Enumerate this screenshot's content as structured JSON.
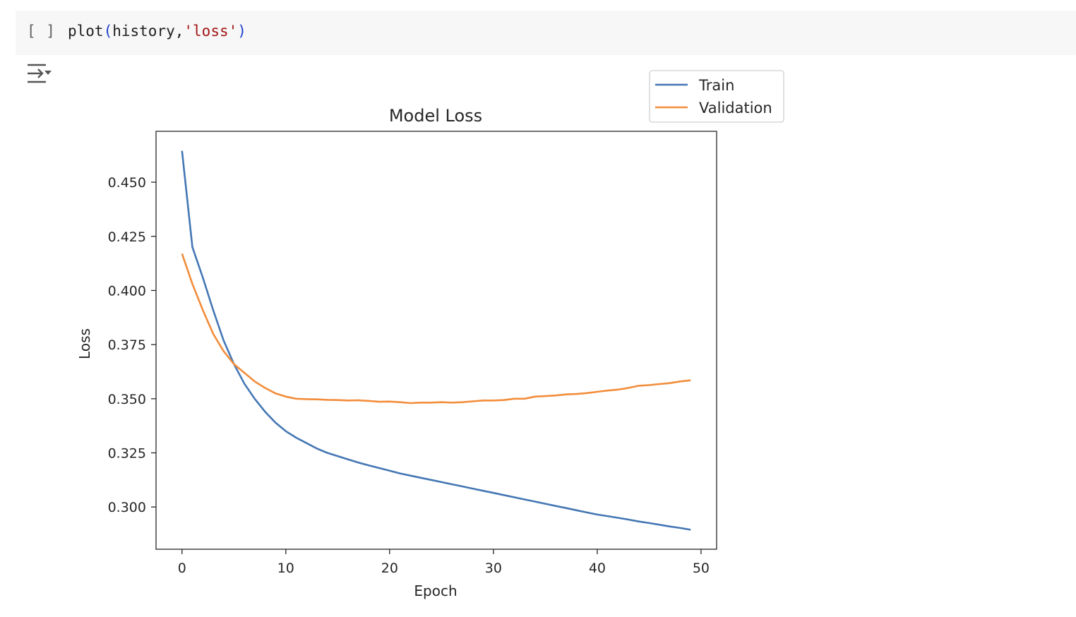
{
  "notebook": {
    "cell": {
      "run_indicator": "[ ]",
      "code": {
        "func": "plot",
        "open_paren": "(",
        "arg1": "history,",
        "arg2": "'loss'",
        "close_paren": ")"
      }
    },
    "output_toggle_icon": "collapse-output-icon"
  },
  "colors": {
    "train": "#4477b4",
    "validation": "#f28d3b",
    "cell_bg": "#f7f7f7"
  },
  "chart_data": {
    "type": "line",
    "title": "Model Loss",
    "xlabel": "Epoch",
    "ylabel": "Loss",
    "xlim": [
      -2.5,
      51.5
    ],
    "ylim": [
      0.2805,
      0.4735
    ],
    "xticks": [
      0,
      10,
      20,
      30,
      40,
      50
    ],
    "xtick_labels": [
      "0",
      "10",
      "20",
      "30",
      "40",
      "50"
    ],
    "yticks": [
      0.3,
      0.325,
      0.35,
      0.375,
      0.4,
      0.425,
      0.45
    ],
    "ytick_labels": [
      "0.300",
      "0.325",
      "0.350",
      "0.375",
      "0.400",
      "0.425",
      "0.450"
    ],
    "grid": false,
    "legend_position": "outside-top-right",
    "series": [
      {
        "name": "Train",
        "color": "#4477b4",
        "x": [
          0,
          1,
          2,
          3,
          4,
          5,
          6,
          7,
          8,
          9,
          10,
          11,
          12,
          13,
          14,
          15,
          16,
          17,
          18,
          19,
          20,
          21,
          22,
          23,
          24,
          25,
          26,
          27,
          28,
          29,
          30,
          31,
          32,
          33,
          34,
          35,
          36,
          37,
          38,
          39,
          40,
          41,
          42,
          43,
          44,
          45,
          46,
          47,
          48,
          49
        ],
        "y": [
          0.4645,
          0.42,
          0.406,
          0.391,
          0.377,
          0.366,
          0.357,
          0.35,
          0.344,
          0.339,
          0.335,
          0.332,
          0.3295,
          0.327,
          0.325,
          0.3235,
          0.322,
          0.3205,
          0.3192,
          0.318,
          0.3168,
          0.3155,
          0.3145,
          0.3135,
          0.3125,
          0.3115,
          0.3105,
          0.3095,
          0.3085,
          0.3075,
          0.3065,
          0.3055,
          0.3045,
          0.3035,
          0.3025,
          0.3015,
          0.3005,
          0.2995,
          0.2985,
          0.2975,
          0.2965,
          0.2958,
          0.295,
          0.2942,
          0.2933,
          0.2926,
          0.2918,
          0.291,
          0.2903,
          0.2895
        ]
      },
      {
        "name": "Validation",
        "color": "#f28d3b",
        "x": [
          0,
          1,
          2,
          3,
          4,
          5,
          6,
          7,
          8,
          9,
          10,
          11,
          12,
          13,
          14,
          15,
          16,
          17,
          18,
          19,
          20,
          21,
          22,
          23,
          24,
          25,
          26,
          27,
          28,
          29,
          30,
          31,
          32,
          33,
          34,
          35,
          36,
          37,
          38,
          39,
          40,
          41,
          42,
          43,
          44,
          45,
          46,
          47,
          48,
          49
        ],
        "y": [
          0.417,
          0.403,
          0.391,
          0.38,
          0.372,
          0.366,
          0.362,
          0.358,
          0.355,
          0.3525,
          0.351,
          0.35,
          0.3498,
          0.3497,
          0.3495,
          0.3494,
          0.3492,
          0.3493,
          0.349,
          0.3486,
          0.3487,
          0.3484,
          0.348,
          0.3482,
          0.3482,
          0.3484,
          0.3482,
          0.3484,
          0.3488,
          0.3492,
          0.3492,
          0.3494,
          0.35,
          0.35,
          0.351,
          0.3512,
          0.3515,
          0.352,
          0.3522,
          0.3526,
          0.3532,
          0.3538,
          0.3542,
          0.355,
          0.356,
          0.3563,
          0.3568,
          0.3572,
          0.358,
          0.3585
        ]
      }
    ]
  }
}
